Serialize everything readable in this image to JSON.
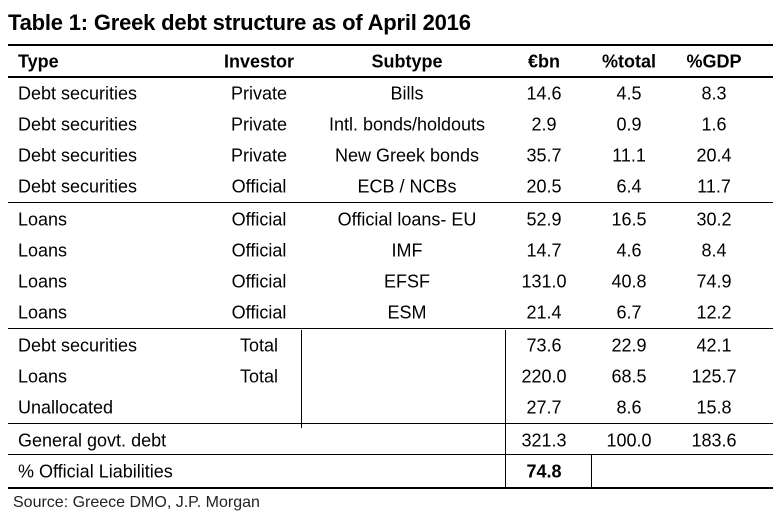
{
  "title": "Table 1: Greek debt structure as of April 2016",
  "columns": {
    "type": "Type",
    "investor": "Investor",
    "subtype": "Subtype",
    "bn": "€bn",
    "pct_total": "%total",
    "pct_gdp": "%GDP"
  },
  "rows": [
    {
      "type": "Debt securities",
      "investor": "Private",
      "subtype": "Bills",
      "bn": "14.6",
      "pct_total": "4.5",
      "pct_gdp": "8.3"
    },
    {
      "type": "Debt securities",
      "investor": "Private",
      "subtype": "Intl. bonds/holdouts",
      "bn": "2.9",
      "pct_total": "0.9",
      "pct_gdp": "1.6"
    },
    {
      "type": "Debt securities",
      "investor": "Private",
      "subtype": "New Greek bonds",
      "bn": "35.7",
      "pct_total": "11.1",
      "pct_gdp": "20.4"
    },
    {
      "type": "Debt securities",
      "investor": "Official",
      "subtype": "ECB / NCBs",
      "bn": "20.5",
      "pct_total": "6.4",
      "pct_gdp": "11.7"
    },
    {
      "type": "Loans",
      "investor": "Official",
      "subtype": "Official loans- EU",
      "bn": "52.9",
      "pct_total": "16.5",
      "pct_gdp": "30.2"
    },
    {
      "type": "Loans",
      "investor": "Official",
      "subtype": "IMF",
      "bn": "14.7",
      "pct_total": "4.6",
      "pct_gdp": "8.4"
    },
    {
      "type": "Loans",
      "investor": "Official",
      "subtype": "EFSF",
      "bn": "131.0",
      "pct_total": "40.8",
      "pct_gdp": "74.9"
    },
    {
      "type": "Loans",
      "investor": "Official",
      "subtype": "ESM",
      "bn": "21.4",
      "pct_total": "6.7",
      "pct_gdp": "12.2"
    },
    {
      "type": "Debt securities",
      "investor": "Total",
      "subtype": "",
      "bn": "73.6",
      "pct_total": "22.9",
      "pct_gdp": "42.1"
    },
    {
      "type": "Loans",
      "investor": "Total",
      "subtype": "",
      "bn": "220.0",
      "pct_total": "68.5",
      "pct_gdp": "125.7"
    },
    {
      "type": "Unallocated",
      "investor": "",
      "subtype": "",
      "bn": "27.7",
      "pct_total": "8.6",
      "pct_gdp": "15.8"
    },
    {
      "type": "General govt. debt",
      "investor": "",
      "subtype": "",
      "bn": "321.3",
      "pct_total": "100.0",
      "pct_gdp": "183.6"
    },
    {
      "type": "% Official Liabilities",
      "investor": "",
      "subtype": "",
      "bn": "74.8",
      "pct_total": "",
      "pct_gdp": ""
    }
  ],
  "source": "Source: Greece DMO, J.P. Morgan"
}
